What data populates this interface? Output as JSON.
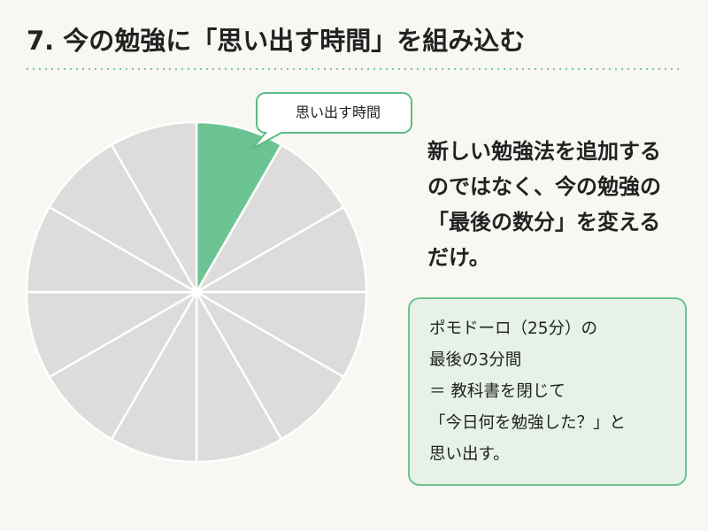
{
  "header": {
    "title": "7. 今の勉強に「思い出す時間」を組み込む"
  },
  "diagram": {
    "highlight_label": "思い出す時間"
  },
  "lead_text": [
    "新しい勉強法を追加する",
    "のではなく、今の勉強の",
    "「最後の数分」を変える",
    "だけ。"
  ],
  "note_box": [
    "ポモドーロ（25分）の",
    "最後の3分間",
    "＝ 教科書を閉じて",
    "「今日何を勉強した？」と",
    "思い出す。"
  ]
}
